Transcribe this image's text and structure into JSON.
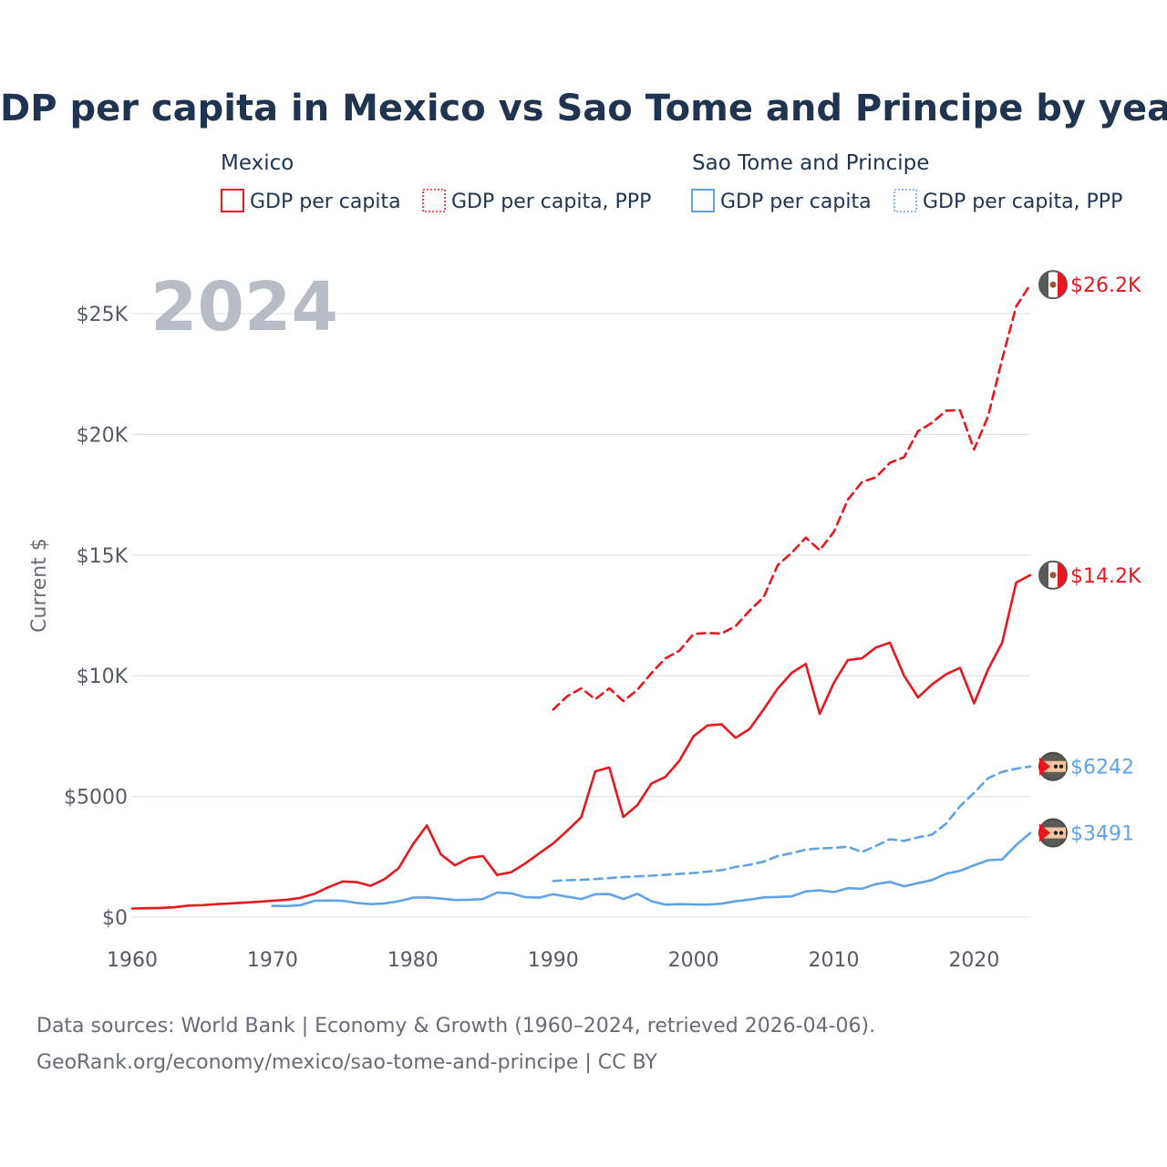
{
  "title": "GDP per capita in Mexico vs Sao Tome and Principe by year",
  "year_watermark": "2024",
  "legend": {
    "groups": [
      {
        "country": "Mexico",
        "items": [
          "GDP per capita",
          "GDP per capita, PPP"
        ],
        "color": "#e8171d"
      },
      {
        "country": "Sao Tome and Principe",
        "items": [
          "GDP per capita",
          "GDP per capita, PPP"
        ],
        "color": "#5fa3e6"
      }
    ]
  },
  "source": {
    "line1": "Data sources: World Bank | Economy & Growth (1960–2024, retrieved 2026-04-06).",
    "line2": "GeoRank.org/economy/mexico/sao-tome-and-principe | CC BY"
  },
  "chart_data": {
    "type": "line",
    "title": "GDP per capita in Mexico vs Sao Tome and Principe by year",
    "xlabel": "",
    "ylabel": "Current $",
    "xlim": [
      1960,
      2024
    ],
    "ylim": [
      0,
      27000
    ],
    "x_ticks": [
      1960,
      1970,
      1980,
      1990,
      2000,
      2010,
      2020
    ],
    "y_ticks": [
      0,
      5000,
      10000,
      15000,
      20000,
      25000
    ],
    "y_tick_labels": [
      "$0",
      "$5000",
      "$10K",
      "$15K",
      "$20K",
      "$25K"
    ],
    "series": [
      {
        "name": "Mexico GDP per capita",
        "color": "#e8171d",
        "dash": "solid",
        "end_label": "$14.2K",
        "x": [
          1960,
          1961,
          1962,
          1963,
          1964,
          1965,
          1966,
          1967,
          1968,
          1969,
          1970,
          1971,
          1972,
          1973,
          1974,
          1975,
          1976,
          1977,
          1978,
          1979,
          1980,
          1981,
          1982,
          1983,
          1984,
          1985,
          1986,
          1987,
          1988,
          1989,
          1990,
          1991,
          1992,
          1993,
          1994,
          1995,
          1996,
          1997,
          1998,
          1999,
          2000,
          2001,
          2002,
          2003,
          2004,
          2005,
          2006,
          2007,
          2008,
          2009,
          2010,
          2011,
          2012,
          2013,
          2014,
          2015,
          2016,
          2017,
          2018,
          2019,
          2020,
          2021,
          2022,
          2023,
          2024
        ],
        "values": [
          360,
          370,
          380,
          410,
          480,
          500,
          540,
          570,
          600,
          640,
          680,
          720,
          800,
          970,
          1250,
          1480,
          1450,
          1300,
          1580,
          2040,
          3010,
          3800,
          2600,
          2150,
          2450,
          2530,
          1750,
          1860,
          2220,
          2640,
          3050,
          3580,
          4140,
          6040,
          6200,
          4150,
          4640,
          5540,
          5810,
          6480,
          7490,
          7940,
          7990,
          7430,
          7800,
          8610,
          9470,
          10120,
          10490,
          8420,
          9700,
          10650,
          10720,
          11170,
          11370,
          10010,
          9100,
          9640,
          10060,
          10330,
          8860,
          10270,
          11370,
          13860,
          14170
        ]
      },
      {
        "name": "Mexico GDP per capita, PPP",
        "color": "#e8171d",
        "dash": "dashed",
        "end_label": "$26.2K",
        "x": [
          1990,
          1991,
          1992,
          1993,
          1994,
          1995,
          1996,
          1997,
          1998,
          1999,
          2000,
          2001,
          2002,
          2003,
          2004,
          2005,
          2006,
          2007,
          2008,
          2009,
          2010,
          2011,
          2012,
          2013,
          2014,
          2015,
          2016,
          2017,
          2018,
          2019,
          2020,
          2021,
          2022,
          2023,
          2024
        ],
        "values": [
          8600,
          9150,
          9480,
          9030,
          9480,
          8950,
          9420,
          10110,
          10720,
          11040,
          11730,
          11770,
          11750,
          12060,
          12700,
          13250,
          14580,
          15100,
          15720,
          15200,
          15950,
          17290,
          18020,
          18220,
          18820,
          19050,
          20130,
          20480,
          20980,
          21000,
          19370,
          20750,
          23110,
          25300,
          26200
        ]
      },
      {
        "name": "Sao Tome and Principe GDP per capita",
        "color": "#5fa3e6",
        "dash": "solid",
        "end_label": "$3491",
        "x": [
          1970,
          1971,
          1972,
          1973,
          1974,
          1975,
          1976,
          1977,
          1978,
          1979,
          1980,
          1981,
          1982,
          1983,
          1984,
          1985,
          1986,
          1987,
          1988,
          1989,
          1990,
          1991,
          1992,
          1993,
          1994,
          1995,
          1996,
          1997,
          1998,
          1999,
          2000,
          2001,
          2002,
          2003,
          2004,
          2005,
          2006,
          2007,
          2008,
          2009,
          2010,
          2011,
          2012,
          2013,
          2014,
          2015,
          2016,
          2017,
          2018,
          2019,
          2020,
          2021,
          2022,
          2023,
          2024
        ],
        "values": [
          470,
          460,
          500,
          680,
          690,
          680,
          590,
          540,
          570,
          660,
          810,
          820,
          770,
          710,
          720,
          750,
          1020,
          990,
          830,
          810,
          950,
          850,
          750,
          950,
          960,
          750,
          970,
          660,
          520,
          540,
          530,
          520,
          560,
          660,
          730,
          820,
          840,
          860,
          1070,
          1110,
          1040,
          1200,
          1180,
          1370,
          1460,
          1280,
          1410,
          1540,
          1800,
          1920,
          2150,
          2360,
          2390,
          2990,
          3491
        ]
      },
      {
        "name": "Sao Tome and Principe GDP per capita, PPP",
        "color": "#5fa3e6",
        "dash": "dashed",
        "end_label": "$6242",
        "x": [
          1990,
          1991,
          1992,
          1993,
          1994,
          1995,
          1996,
          1997,
          1998,
          1999,
          2000,
          2001,
          2002,
          2003,
          2004,
          2005,
          2006,
          2007,
          2008,
          2009,
          2010,
          2011,
          2012,
          2013,
          2014,
          2015,
          2016,
          2017,
          2018,
          2019,
          2020,
          2021,
          2022,
          2023,
          2024
        ],
        "values": [
          1500,
          1530,
          1550,
          1580,
          1620,
          1660,
          1690,
          1720,
          1760,
          1790,
          1830,
          1890,
          1950,
          2080,
          2170,
          2300,
          2530,
          2650,
          2800,
          2850,
          2870,
          2920,
          2700,
          2950,
          3230,
          3160,
          3310,
          3420,
          3870,
          4600,
          5150,
          5760,
          6020,
          6150,
          6242
        ]
      }
    ]
  }
}
